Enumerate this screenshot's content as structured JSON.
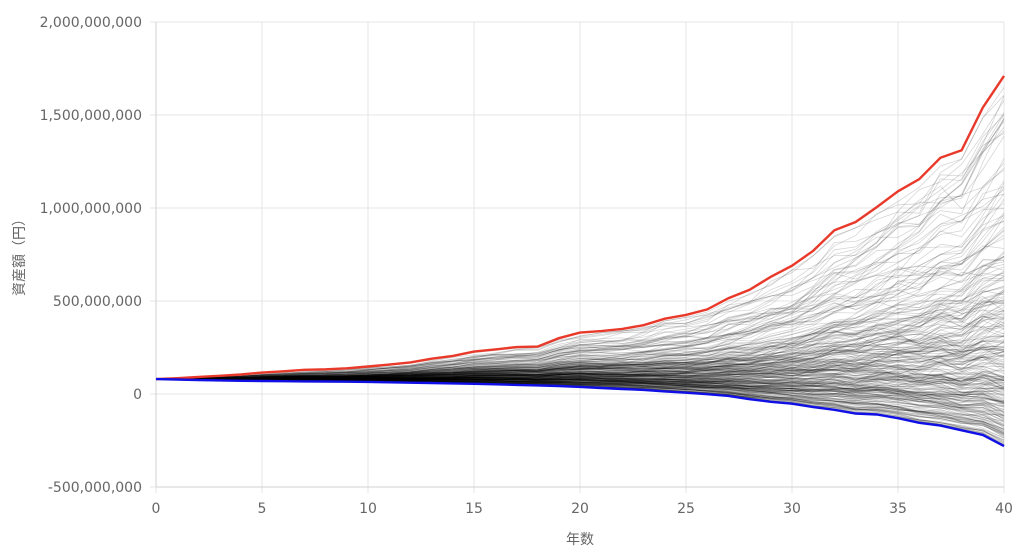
{
  "chart_data": {
    "type": "line",
    "xlabel": "年数",
    "ylabel": "資産額（円）",
    "xlim": [
      0,
      40
    ],
    "ylim": [
      -500000000,
      2000000000
    ],
    "x_ticks": [
      0,
      5,
      10,
      15,
      20,
      25,
      30,
      35,
      40
    ],
    "x_tick_labels": [
      "0",
      "5",
      "10",
      "15",
      "20",
      "25",
      "30",
      "35",
      "40"
    ],
    "y_ticks": [
      -500000000,
      0,
      500000000,
      1000000000,
      1500000000,
      2000000000
    ],
    "y_tick_labels": [
      "-500,000,000",
      "0",
      "500,000,000",
      "1,000,000,000",
      "1,500,000,000",
      "2,000,000,000"
    ],
    "grid": true,
    "legend": "none",
    "simulation": {
      "count": 300,
      "start_value": 80000000,
      "color": "#000000"
    },
    "series": [
      {
        "role": "max",
        "color": "#e8392a",
        "x": [
          0,
          1,
          2,
          3,
          4,
          5,
          6,
          7,
          8,
          9,
          10,
          11,
          12,
          13,
          14,
          15,
          16,
          17,
          18,
          19,
          20,
          21,
          22,
          23,
          24,
          25,
          26,
          27,
          28,
          29,
          30,
          31,
          32,
          33,
          34,
          35,
          36,
          37,
          38,
          39,
          40
        ],
        "values": [
          80000000,
          85000000,
          92000000,
          98000000,
          105000000,
          115000000,
          122000000,
          130000000,
          133000000,
          138000000,
          148000000,
          158000000,
          170000000,
          190000000,
          205000000,
          228000000,
          240000000,
          252000000,
          255000000,
          300000000,
          330000000,
          338000000,
          350000000,
          370000000,
          405000000,
          425000000,
          455000000,
          515000000,
          560000000,
          630000000,
          690000000,
          770000000,
          880000000,
          925000000,
          1005000000,
          1090000000,
          1155000000,
          1270000000,
          1310000000,
          1540000000,
          1710000000
        ]
      },
      {
        "role": "min",
        "color": "#1010e6",
        "x": [
          0,
          1,
          2,
          3,
          4,
          5,
          6,
          7,
          8,
          9,
          10,
          11,
          12,
          13,
          14,
          15,
          16,
          17,
          18,
          19,
          20,
          21,
          22,
          23,
          24,
          25,
          26,
          27,
          28,
          29,
          30,
          31,
          32,
          33,
          34,
          35,
          36,
          37,
          38,
          39,
          40
        ],
        "values": [
          80000000,
          78000000,
          75000000,
          73000000,
          71000000,
          70000000,
          69000000,
          68000000,
          67000000,
          66000000,
          65000000,
          63000000,
          61000000,
          59000000,
          57000000,
          55000000,
          52000000,
          49000000,
          46000000,
          43000000,
          38000000,
          32000000,
          27000000,
          22000000,
          14000000,
          7000000,
          -1000000,
          -10000000,
          -28000000,
          -42000000,
          -52000000,
          -70000000,
          -85000000,
          -105000000,
          -110000000,
          -130000000,
          -155000000,
          -170000000,
          -195000000,
          -220000000,
          -280000000
        ]
      }
    ]
  }
}
